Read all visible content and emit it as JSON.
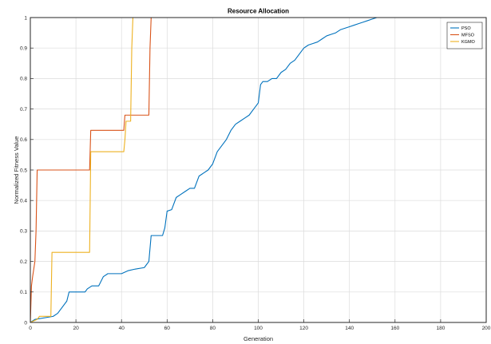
{
  "chart_data": {
    "type": "line",
    "title": "Resource Allocation",
    "xlabel": "Generation",
    "ylabel": "Normalized Fitness Value",
    "xlim": [
      0,
      200
    ],
    "ylim": [
      0,
      1
    ],
    "xticks": [
      0,
      20,
      40,
      60,
      80,
      100,
      120,
      140,
      160,
      180,
      200
    ],
    "yticks": [
      0,
      0.1,
      0.2,
      0.3,
      0.4,
      0.5,
      0.6,
      0.7,
      0.8,
      0.9,
      1
    ],
    "grid": true,
    "legend_position": "top-right",
    "series": [
      {
        "name": "PSO",
        "color": "#0072BD",
        "points": [
          [
            0,
            0
          ],
          [
            2,
            0.01
          ],
          [
            10,
            0.02
          ],
          [
            12,
            0.03
          ],
          [
            16,
            0.07
          ],
          [
            17,
            0.1
          ],
          [
            20,
            0.1
          ],
          [
            24,
            0.1
          ],
          [
            25,
            0.11
          ],
          [
            27,
            0.12
          ],
          [
            30,
            0.12
          ],
          [
            32,
            0.15
          ],
          [
            34,
            0.16
          ],
          [
            40,
            0.16
          ],
          [
            43,
            0.17
          ],
          [
            46,
            0.175
          ],
          [
            50,
            0.18
          ],
          [
            52,
            0.2
          ],
          [
            53,
            0.285
          ],
          [
            58,
            0.285
          ],
          [
            59,
            0.31
          ],
          [
            60,
            0.365
          ],
          [
            62,
            0.37
          ],
          [
            64,
            0.41
          ],
          [
            66,
            0.42
          ],
          [
            68,
            0.43
          ],
          [
            70,
            0.44
          ],
          [
            72,
            0.44
          ],
          [
            74,
            0.48
          ],
          [
            76,
            0.49
          ],
          [
            78,
            0.5
          ],
          [
            80,
            0.52
          ],
          [
            82,
            0.56
          ],
          [
            84,
            0.58
          ],
          [
            86,
            0.6
          ],
          [
            88,
            0.63
          ],
          [
            90,
            0.65
          ],
          [
            92,
            0.66
          ],
          [
            94,
            0.67
          ],
          [
            96,
            0.68
          ],
          [
            98,
            0.7
          ],
          [
            99,
            0.71
          ],
          [
            100,
            0.72
          ],
          [
            101,
            0.78
          ],
          [
            102,
            0.79
          ],
          [
            104,
            0.79
          ],
          [
            106,
            0.8
          ],
          [
            108,
            0.8
          ],
          [
            110,
            0.82
          ],
          [
            112,
            0.83
          ],
          [
            114,
            0.85
          ],
          [
            116,
            0.86
          ],
          [
            118,
            0.88
          ],
          [
            120,
            0.9
          ],
          [
            122,
            0.91
          ],
          [
            124,
            0.915
          ],
          [
            126,
            0.92
          ],
          [
            128,
            0.93
          ],
          [
            130,
            0.94
          ],
          [
            132,
            0.945
          ],
          [
            134,
            0.95
          ],
          [
            136,
            0.96
          ],
          [
            138,
            0.965
          ],
          [
            140,
            0.97
          ],
          [
            142,
            0.975
          ],
          [
            144,
            0.98
          ],
          [
            146,
            0.985
          ],
          [
            148,
            0.99
          ],
          [
            150,
            0.995
          ],
          [
            152,
            1
          ],
          [
            155,
            1
          ],
          [
            200,
            1
          ]
        ]
      },
      {
        "name": "MFSO",
        "color": "#D95319",
        "points": [
          [
            0,
            0
          ],
          [
            0.5,
            0.12
          ],
          [
            1,
            0.15
          ],
          [
            2,
            0.2
          ],
          [
            2.5,
            0.3
          ],
          [
            3,
            0.5
          ],
          [
            26,
            0.5
          ],
          [
            26.5,
            0.63
          ],
          [
            27,
            0.63
          ],
          [
            41,
            0.63
          ],
          [
            41.5,
            0.68
          ],
          [
            52,
            0.68
          ],
          [
            52.5,
            0.9
          ],
          [
            53,
            1
          ],
          [
            200,
            1
          ]
        ]
      },
      {
        "name": "KGMO",
        "color": "#EDB120",
        "points": [
          [
            0,
            0
          ],
          [
            3,
            0.01
          ],
          [
            4,
            0.02
          ],
          [
            9,
            0.02
          ],
          [
            9.5,
            0.23
          ],
          [
            26,
            0.23
          ],
          [
            26.5,
            0.56
          ],
          [
            41,
            0.56
          ],
          [
            41.5,
            0.6
          ],
          [
            42,
            0.66
          ],
          [
            44,
            0.66
          ],
          [
            44.5,
            0.9
          ],
          [
            45,
            1
          ],
          [
            200,
            1
          ]
        ]
      }
    ]
  }
}
